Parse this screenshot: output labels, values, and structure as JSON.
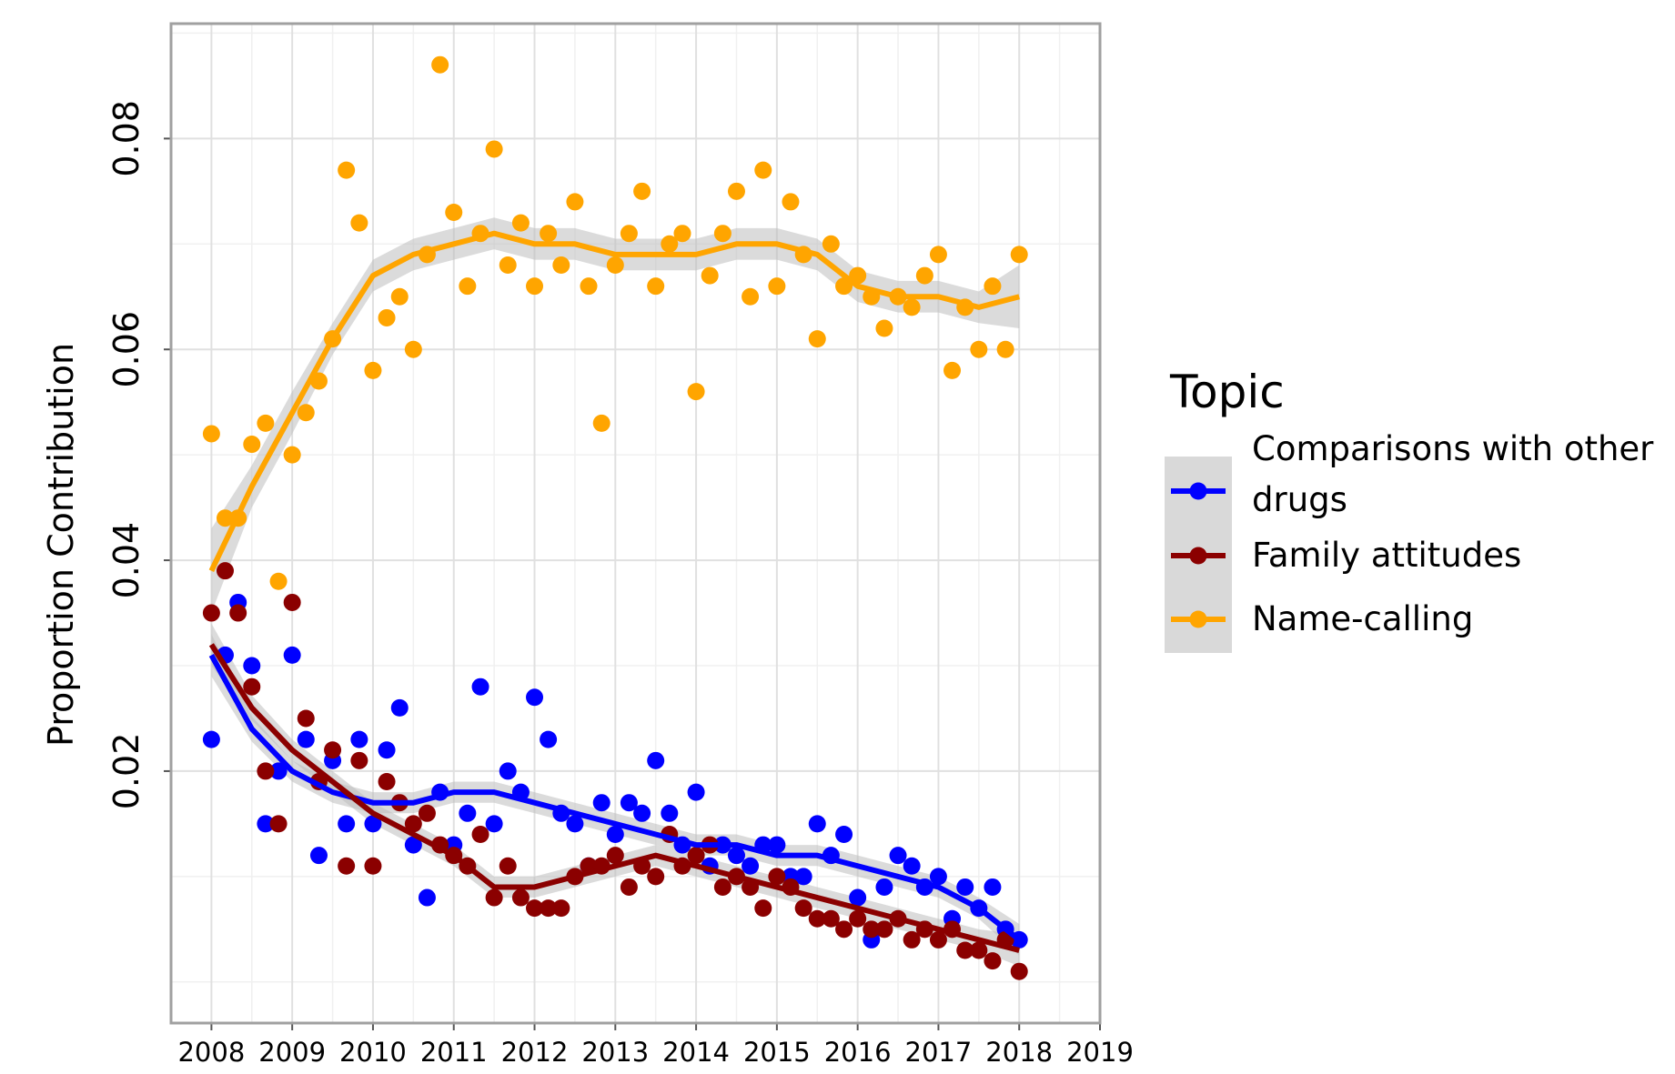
{
  "chart_data": {
    "type": "scatter",
    "y_label": "Proportion Contribution",
    "legend_title": "Topic",
    "xlim": [
      2007.5,
      2019
    ],
    "xticks": [
      2008,
      2009,
      2010,
      2011,
      2012,
      2013,
      2014,
      2015,
      2016,
      2017,
      2018,
      2019
    ],
    "x_minor_ticks": [
      2007.5,
      2008.5,
      2009.5,
      2010.5,
      2011.5,
      2012.5,
      2013.5,
      2014.5,
      2015.5,
      2016.5,
      2017.5,
      2018.5
    ],
    "ylim": [
      -0.0039,
      0.0909
    ],
    "yticks": [
      0.02,
      0.04,
      0.06,
      0.08
    ],
    "y_minor_ticks": [
      0,
      0.01,
      0.03,
      0.05,
      0.07,
      0.09
    ],
    "grid": true,
    "legend": "right",
    "x": [
      2008,
      2008.17,
      2008.33,
      2008.5,
      2008.67,
      2008.83,
      2009,
      2009.17,
      2009.33,
      2009.5,
      2009.67,
      2009.83,
      2010,
      2010.17,
      2010.33,
      2010.5,
      2010.67,
      2010.83,
      2011,
      2011.17,
      2011.33,
      2011.5,
      2011.67,
      2011.83,
      2012,
      2012.17,
      2012.33,
      2012.5,
      2012.67,
      2012.83,
      2013,
      2013.17,
      2013.33,
      2013.5,
      2013.67,
      2013.83,
      2014,
      2014.17,
      2014.33,
      2014.5,
      2014.67,
      2014.83,
      2015,
      2015.17,
      2015.33,
      2015.5,
      2015.67,
      2015.83,
      2016,
      2016.17,
      2016.33,
      2016.5,
      2016.67,
      2016.83,
      2017,
      2017.17,
      2017.33,
      2017.5,
      2017.67,
      2017.83,
      2018
    ],
    "trend_x": [
      2008,
      2008.5,
      2009,
      2009.5,
      2010,
      2010.5,
      2011,
      2011.5,
      2012,
      2012.5,
      2013,
      2013.5,
      2014,
      2014.5,
      2015,
      2015.5,
      2016,
      2016.5,
      2017,
      2017.5,
      2018
    ],
    "series": [
      {
        "name": "Comparisons with other drugs",
        "color": "#0000ff",
        "values": [
          0.023,
          0.031,
          0.036,
          0.03,
          0.015,
          0.02,
          0.031,
          0.023,
          0.012,
          0.021,
          0.015,
          0.023,
          0.015,
          0.022,
          0.026,
          0.013,
          0.008,
          0.018,
          0.013,
          0.016,
          0.028,
          0.015,
          0.02,
          0.018,
          0.027,
          0.023,
          0.016,
          0.015,
          0.011,
          0.017,
          0.014,
          0.017,
          0.016,
          0.021,
          0.016,
          0.013,
          0.018,
          0.011,
          0.013,
          0.012,
          0.011,
          0.013,
          0.013,
          0.01,
          0.01,
          0.015,
          0.012,
          0.014,
          0.008,
          0.004,
          0.009,
          0.012,
          0.011,
          0.009,
          0.01,
          0.006,
          0.009,
          0.007,
          0.009,
          0.005,
          0.004
        ],
        "trend": [
          0.031,
          0.024,
          0.02,
          0.018,
          0.017,
          0.017,
          0.018,
          0.018,
          0.017,
          0.016,
          0.015,
          0.014,
          0.013,
          0.013,
          0.012,
          0.012,
          0.011,
          0.01,
          0.009,
          0.007,
          0.004
        ],
        "trend_se": [
          0.002,
          0.0012,
          0.001,
          0.001,
          0.001,
          0.001,
          0.001,
          0.001,
          0.001,
          0.001,
          0.001,
          0.001,
          0.001,
          0.001,
          0.001,
          0.001,
          0.001,
          0.001,
          0.001,
          0.001,
          0.0015
        ]
      },
      {
        "name": "Family attitudes",
        "color": "#8b0000",
        "values": [
          0.035,
          0.039,
          0.035,
          0.028,
          0.02,
          0.015,
          0.036,
          0.025,
          0.019,
          0.022,
          0.011,
          0.021,
          0.011,
          0.019,
          0.017,
          0.015,
          0.016,
          0.013,
          0.012,
          0.011,
          0.014,
          0.008,
          0.011,
          0.008,
          0.007,
          0.007,
          0.007,
          0.01,
          0.011,
          0.011,
          0.012,
          0.009,
          0.011,
          0.01,
          0.014,
          0.011,
          0.012,
          0.013,
          0.009,
          0.01,
          0.009,
          0.007,
          0.01,
          0.009,
          0.007,
          0.006,
          0.006,
          0.005,
          0.006,
          0.005,
          0.005,
          0.006,
          0.004,
          0.005,
          0.004,
          0.005,
          0.003,
          0.003,
          0.002,
          0.004,
          0.001
        ],
        "trend": [
          0.032,
          0.026,
          0.022,
          0.019,
          0.016,
          0.014,
          0.012,
          0.009,
          0.009,
          0.01,
          0.011,
          0.012,
          0.011,
          0.01,
          0.009,
          0.008,
          0.007,
          0.006,
          0.005,
          0.004,
          0.003
        ],
        "trend_se": [
          0.002,
          0.0012,
          0.001,
          0.001,
          0.001,
          0.001,
          0.001,
          0.001,
          0.001,
          0.001,
          0.001,
          0.001,
          0.001,
          0.001,
          0.001,
          0.001,
          0.001,
          0.001,
          0.001,
          0.001,
          0.0015
        ]
      },
      {
        "name": "Name-calling",
        "color": "#ffa500",
        "values": [
          0.052,
          0.044,
          0.044,
          0.051,
          0.053,
          0.038,
          0.05,
          0.054,
          0.057,
          0.061,
          0.077,
          0.072,
          0.058,
          0.063,
          0.065,
          0.06,
          0.069,
          0.087,
          0.073,
          0.066,
          0.071,
          0.079,
          0.068,
          0.072,
          0.066,
          0.071,
          0.068,
          0.074,
          0.066,
          0.053,
          0.068,
          0.071,
          0.075,
          0.066,
          0.07,
          0.071,
          0.056,
          0.067,
          0.071,
          0.075,
          0.065,
          0.077,
          0.066,
          0.074,
          0.069,
          0.061,
          0.07,
          0.066,
          0.067,
          0.065,
          0.062,
          0.065,
          0.064,
          0.067,
          0.069,
          0.058,
          0.064,
          0.06,
          0.066,
          0.06,
          0.069
        ],
        "trend": [
          0.039,
          0.047,
          0.054,
          0.061,
          0.067,
          0.069,
          0.07,
          0.071,
          0.07,
          0.07,
          0.069,
          0.069,
          0.069,
          0.07,
          0.07,
          0.069,
          0.066,
          0.065,
          0.065,
          0.064,
          0.065
        ],
        "trend_se": [
          0.004,
          0.002,
          0.002,
          0.0015,
          0.0015,
          0.0015,
          0.0015,
          0.0015,
          0.0015,
          0.0015,
          0.0015,
          0.0015,
          0.0015,
          0.0015,
          0.0015,
          0.0015,
          0.0015,
          0.0015,
          0.0015,
          0.0015,
          0.003
        ]
      }
    ]
  }
}
